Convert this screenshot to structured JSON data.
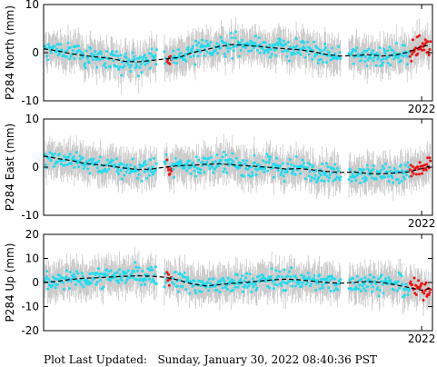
{
  "footer": {
    "label": "Plot Last Updated:",
    "timestamp": "Sunday, January 30, 2022 08:40:36 PST"
  },
  "colors": {
    "cyan": "#1fdcf0",
    "red": "#ee1111",
    "errorbar": "#c8c8c8",
    "model": "#000000",
    "frame": "#000000"
  },
  "chart_data": [
    {
      "type": "scatter",
      "ylabel": "P284 North (mm)",
      "ylim": [
        -10,
        10
      ],
      "yticks": [
        -10,
        0,
        10
      ],
      "xlim": [
        2008.0,
        2022.4
      ],
      "xtick_value": 2022.0,
      "xtick_label": "2022",
      "red_after": 2021.55,
      "red_window": [
        2012.55,
        2012.75
      ],
      "error_mm": 3.0,
      "model": {
        "x": [
          2008.0,
          2008.5,
          2009.0,
          2009.5,
          2010.0,
          2010.5,
          2011.0,
          2011.5,
          2012.0,
          2012.5,
          2013.0,
          2013.5,
          2014.0,
          2014.5,
          2015.0,
          2015.5,
          2016.0,
          2016.5,
          2017.0,
          2017.5,
          2018.0,
          2018.5,
          2019.0,
          2019.5,
          2020.0,
          2020.5,
          2021.0,
          2021.5,
          2022.0,
          2022.3
        ],
        "y": [
          0.8,
          0.4,
          -0.2,
          -0.6,
          -0.9,
          -1.2,
          -1.8,
          -1.9,
          -1.6,
          -1.3,
          -1.0,
          0.0,
          0.6,
          1.3,
          1.7,
          1.5,
          1.3,
          1.0,
          0.8,
          0.6,
          0.2,
          -0.4,
          -0.7,
          -0.6,
          -0.4,
          -0.7,
          -0.5,
          0.1,
          1.3,
          1.6
        ]
      }
    },
    {
      "type": "scatter",
      "ylabel": "P284 East (mm)",
      "ylim": [
        -10,
        10
      ],
      "yticks": [
        -10,
        0,
        10
      ],
      "xlim": [
        2008.0,
        2022.4
      ],
      "xtick_value": 2022.0,
      "xtick_label": "2022",
      "red_after": 2021.55,
      "red_window": [
        2012.55,
        2012.75
      ],
      "error_mm": 3.0,
      "model": {
        "x": [
          2008.0,
          2008.5,
          2009.0,
          2009.5,
          2010.0,
          2010.5,
          2011.0,
          2011.5,
          2012.0,
          2012.5,
          2013.0,
          2013.5,
          2014.0,
          2014.5,
          2015.0,
          2015.5,
          2016.0,
          2016.5,
          2017.0,
          2017.5,
          2018.0,
          2018.5,
          2019.0,
          2019.5,
          2020.0,
          2020.5,
          2021.0,
          2021.5,
          2022.0,
          2022.3
        ],
        "y": [
          2.3,
          1.8,
          1.4,
          0.8,
          0.5,
          0.2,
          -0.2,
          -0.5,
          -0.4,
          0.0,
          0.3,
          0.4,
          0.6,
          0.7,
          0.5,
          0.3,
          0.1,
          -0.1,
          -0.4,
          -0.3,
          -0.6,
          -0.9,
          -1.1,
          -1.0,
          -1.3,
          -1.4,
          -1.2,
          -1.0,
          -0.3,
          0.2
        ]
      }
    },
    {
      "type": "scatter",
      "ylabel": "P284 Up (mm)",
      "ylim": [
        -20,
        20
      ],
      "yticks": [
        -20,
        -10,
        0,
        10,
        20
      ],
      "xlim": [
        2008.0,
        2022.4
      ],
      "xtick_value": 2022.0,
      "xtick_label": "2022",
      "red_after": 2021.55,
      "red_window": [
        2012.55,
        2012.75
      ],
      "error_mm": 6.0,
      "model": {
        "x": [
          2008.0,
          2008.5,
          2009.0,
          2009.5,
          2010.0,
          2010.5,
          2011.0,
          2011.5,
          2012.0,
          2012.5,
          2013.0,
          2013.5,
          2014.0,
          2014.5,
          2015.0,
          2015.5,
          2016.0,
          2016.5,
          2017.0,
          2017.5,
          2018.0,
          2018.5,
          2019.0,
          2019.5,
          2020.0,
          2020.5,
          2021.0,
          2021.5,
          2022.0,
          2022.3
        ],
        "y": [
          0.0,
          0.5,
          1.3,
          1.8,
          2.0,
          2.3,
          2.6,
          2.8,
          2.6,
          2.2,
          1.0,
          -0.6,
          -1.4,
          -0.9,
          -0.3,
          0.1,
          0.6,
          1.1,
          1.4,
          1.1,
          0.5,
          0.0,
          -0.3,
          0.1,
          0.4,
          0.1,
          -0.9,
          -2.0,
          -3.2,
          -2.4
        ]
      }
    }
  ]
}
